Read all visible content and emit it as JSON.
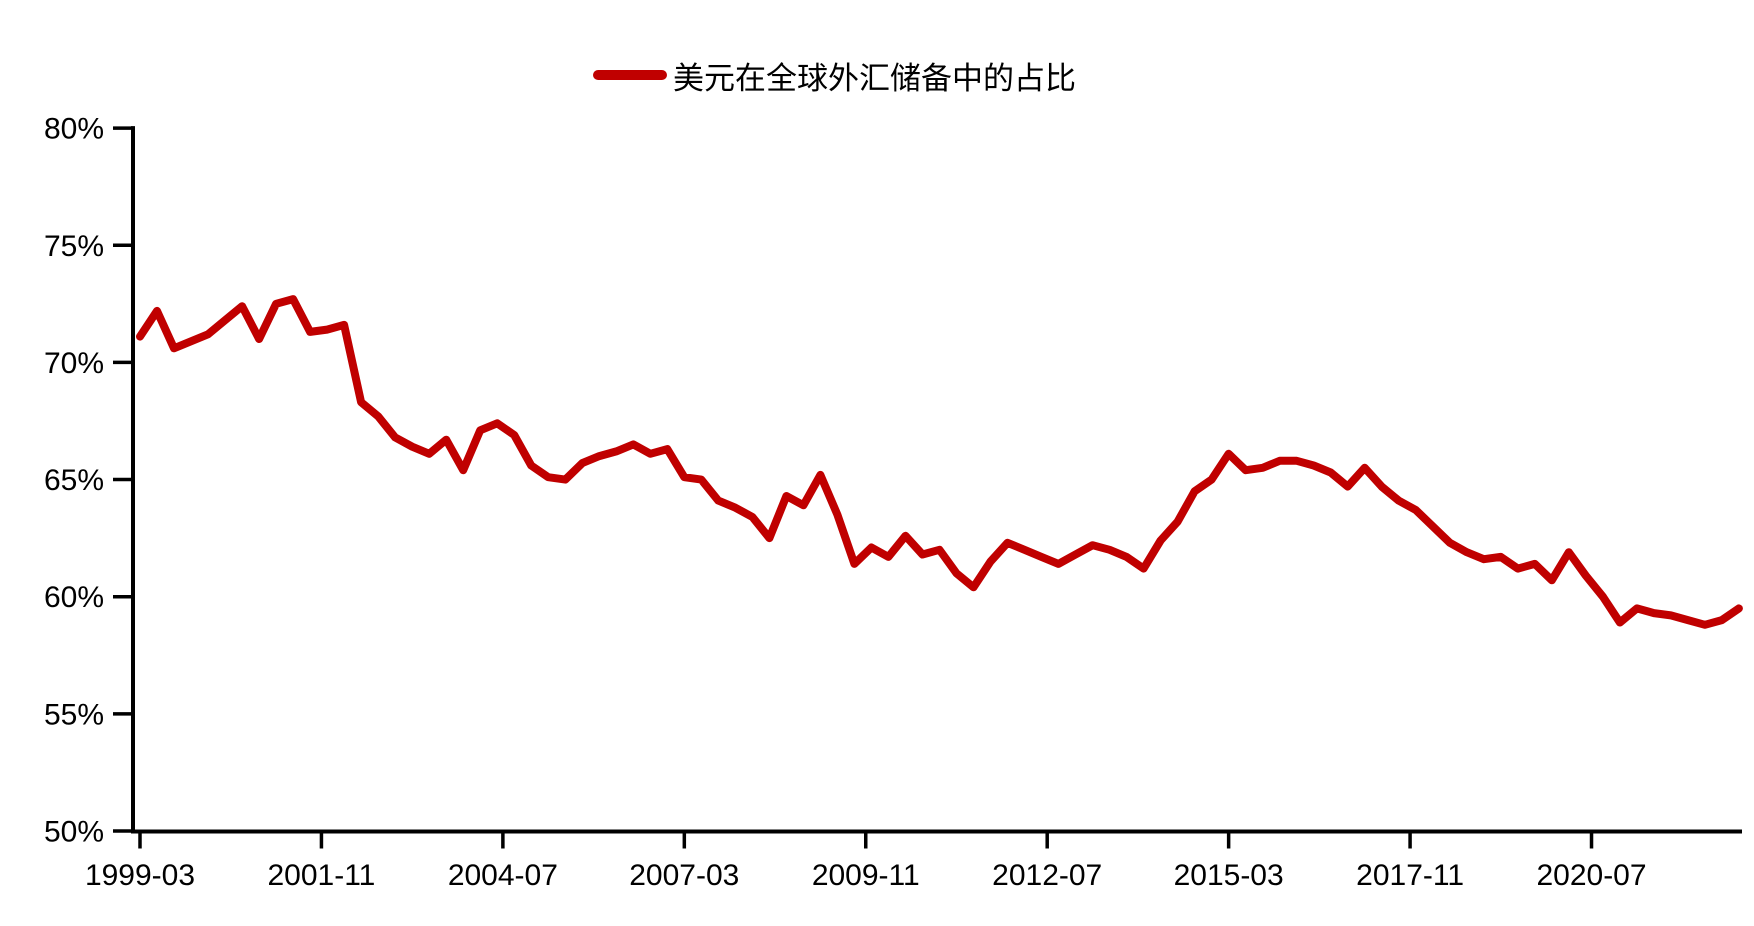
{
  "legend": {
    "label": "美元在全球外汇储备中的占比"
  },
  "colors": {
    "line": "#C00000",
    "axis": "#000000",
    "text": "#000000",
    "background": "#FFFFFF"
  },
  "chart_data": {
    "type": "line",
    "title": "美元在全球外汇储备中的占比",
    "xlabel": "",
    "ylabel": "",
    "grid": false,
    "legend_position": "top-center",
    "ylim": [
      50,
      80
    ],
    "y_tick_step": 5,
    "y_ticks": [
      {
        "value": 80,
        "label": "80%"
      },
      {
        "value": 75,
        "label": "75%"
      },
      {
        "value": 70,
        "label": "70%"
      },
      {
        "value": 65,
        "label": "65%"
      },
      {
        "value": 60,
        "label": "60%"
      },
      {
        "value": 55,
        "label": "55%"
      },
      {
        "value": 50,
        "label": "50%"
      }
    ],
    "x_tick_labels": [
      "1999-03",
      "2001-11",
      "2004-07",
      "2007-03",
      "2009-11",
      "2012-07",
      "2015-03",
      "2017-11",
      "2020-07"
    ],
    "series": [
      {
        "name": "美元在全球外汇储备中的占比",
        "color": "#C00000",
        "unit": "%",
        "x": [
          "1999-03",
          "1999-06",
          "1999-09",
          "1999-12",
          "2000-03",
          "2000-06",
          "2000-09",
          "2000-12",
          "2001-03",
          "2001-06",
          "2001-09",
          "2001-12",
          "2002-03",
          "2002-06",
          "2002-09",
          "2002-12",
          "2003-03",
          "2003-06",
          "2003-09",
          "2003-12",
          "2004-03",
          "2004-06",
          "2004-09",
          "2004-12",
          "2005-03",
          "2005-06",
          "2005-09",
          "2005-12",
          "2006-03",
          "2006-06",
          "2006-09",
          "2006-12",
          "2007-03",
          "2007-06",
          "2007-09",
          "2007-12",
          "2008-03",
          "2008-06",
          "2008-09",
          "2008-12",
          "2009-03",
          "2009-06",
          "2009-09",
          "2009-12",
          "2010-03",
          "2010-06",
          "2010-09",
          "2010-12",
          "2011-03",
          "2011-06",
          "2011-09",
          "2011-12",
          "2012-03",
          "2012-06",
          "2012-09",
          "2012-12",
          "2013-03",
          "2013-06",
          "2013-09",
          "2013-12",
          "2014-03",
          "2014-06",
          "2014-09",
          "2014-12",
          "2015-03",
          "2015-06",
          "2015-09",
          "2015-12",
          "2016-03",
          "2016-06",
          "2016-09",
          "2016-12",
          "2017-03",
          "2017-06",
          "2017-09",
          "2017-12",
          "2018-03",
          "2018-06",
          "2018-09",
          "2018-12",
          "2019-03",
          "2019-06",
          "2019-09",
          "2019-12",
          "2020-03",
          "2020-06",
          "2020-09",
          "2020-12",
          "2021-03",
          "2021-06",
          "2021-09",
          "2021-12",
          "2022-03",
          "2022-06",
          "2022-09"
        ],
        "values": [
          71.1,
          72.2,
          70.6,
          70.9,
          71.2,
          71.8,
          72.4,
          71.0,
          72.5,
          72.7,
          71.3,
          71.4,
          71.6,
          68.3,
          67.7,
          66.8,
          66.4,
          66.1,
          66.7,
          65.4,
          67.1,
          67.4,
          66.9,
          65.6,
          65.1,
          65.0,
          65.7,
          66.0,
          66.2,
          66.5,
          66.1,
          66.3,
          65.1,
          65.0,
          64.1,
          63.8,
          63.4,
          62.5,
          64.3,
          63.9,
          65.2,
          63.5,
          61.4,
          62.1,
          61.7,
          62.6,
          61.8,
          62.0,
          61.0,
          60.4,
          61.5,
          62.3,
          62.0,
          61.7,
          61.4,
          61.8,
          62.2,
          62.0,
          61.7,
          61.2,
          62.4,
          63.2,
          64.5,
          65.0,
          66.1,
          65.4,
          65.5,
          65.8,
          65.8,
          65.6,
          65.3,
          64.7,
          65.5,
          64.7,
          64.1,
          63.7,
          63.0,
          62.3,
          61.9,
          61.6,
          61.7,
          61.2,
          61.4,
          60.7,
          61.9,
          60.9,
          60.0,
          58.9,
          59.5,
          59.3,
          59.2,
          59.0,
          58.8,
          59.0,
          59.5
        ]
      }
    ]
  }
}
